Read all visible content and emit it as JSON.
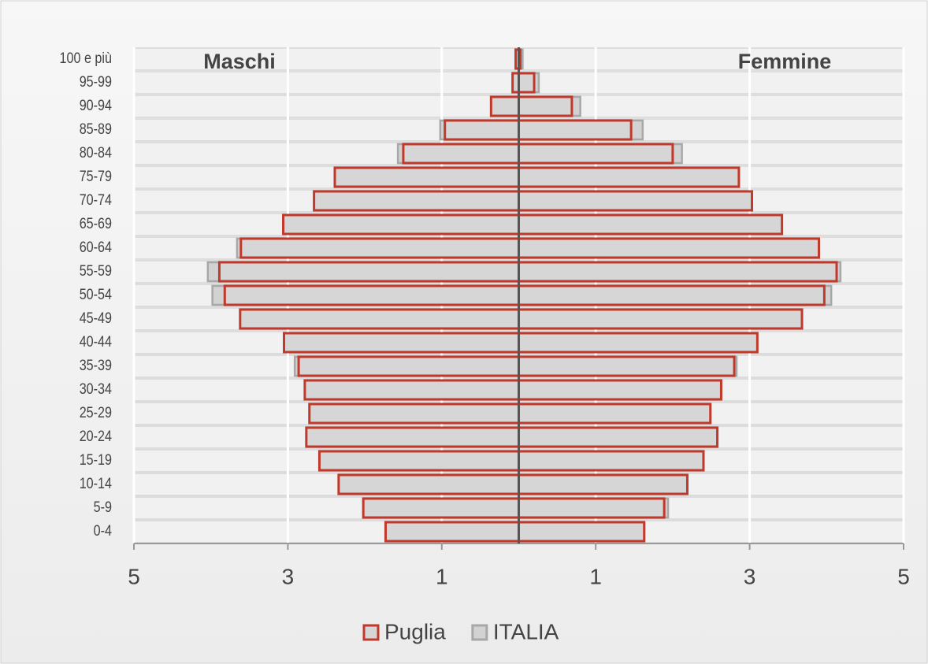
{
  "chart_data": {
    "type": "pyramid",
    "annotations": [
      "Maschi",
      "Femmine"
    ],
    "categories": [
      "0-4",
      "5-9",
      "10-14",
      "15-19",
      "20-24",
      "25-29",
      "30-34",
      "35-39",
      "40-44",
      "45-49",
      "50-54",
      "55-59",
      "60-64",
      "65-69",
      "70-74",
      "75-79",
      "80-84",
      "85-89",
      "90-94",
      "95-99",
      "100 e più"
    ],
    "series": [
      {
        "name": "ITALIA",
        "color": "#d2d2d2",
        "edge": "#a8a8a8",
        "male": [
          -1.71,
          -2.0,
          -2.31,
          -2.57,
          -2.66,
          -2.69,
          -2.76,
          -2.91,
          -3.02,
          -3.56,
          -3.98,
          -4.04,
          -3.66,
          -3.04,
          -2.64,
          -2.33,
          -1.57,
          -1.02,
          -0.36,
          -0.07,
          -0.04
        ],
        "female": [
          1.63,
          1.94,
          2.19,
          2.4,
          2.42,
          2.44,
          2.59,
          2.83,
          3.06,
          3.61,
          4.06,
          4.18,
          3.88,
          3.34,
          2.96,
          2.81,
          2.12,
          1.61,
          0.8,
          0.26,
          0.05
        ]
      },
      {
        "name": "Puglia",
        "color": "#d6d6d6",
        "edge": "#c0392b",
        "male": [
          -1.73,
          -2.02,
          -2.34,
          -2.59,
          -2.76,
          -2.72,
          -2.78,
          -2.86,
          -3.05,
          -3.62,
          -3.82,
          -3.89,
          -3.61,
          -3.06,
          -2.66,
          -2.39,
          -1.5,
          -0.96,
          -0.36,
          -0.08,
          -0.04
        ],
        "female": [
          1.63,
          1.89,
          2.19,
          2.4,
          2.58,
          2.49,
          2.63,
          2.8,
          3.1,
          3.68,
          3.97,
          4.13,
          3.9,
          3.42,
          3.03,
          2.86,
          2.0,
          1.46,
          0.69,
          0.2,
          0.02
        ]
      }
    ],
    "legend_order": [
      1,
      0
    ],
    "xlim": [
      -5,
      5
    ],
    "xticks": [
      {
        "value": -5,
        "label": "5"
      },
      {
        "value": -3,
        "label": "3"
      },
      {
        "value": -1,
        "label": "1"
      },
      1,
      3,
      5
    ],
    "grid": true
  }
}
